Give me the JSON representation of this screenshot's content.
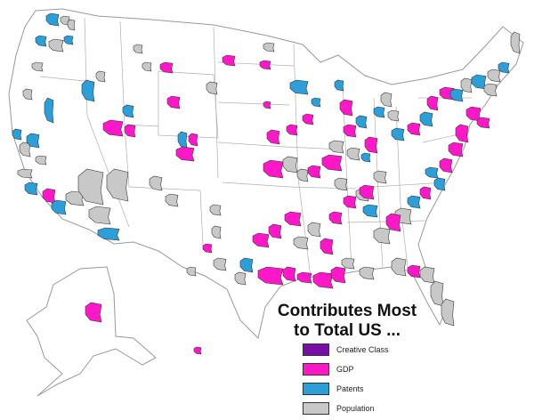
{
  "title": {
    "line1": "Contributes Most",
    "line2": "to Total US ..."
  },
  "legend": [
    {
      "label": "Creative Class",
      "color": "#7a0fa8"
    },
    {
      "label": "GDP",
      "color": "#ff17c8"
    },
    {
      "label": "Patents",
      "color": "#2c9fd9"
    },
    {
      "label": "Population",
      "color": "#c8c8c8"
    }
  ],
  "colors": {
    "land": "#ffffff",
    "state_border": "#b0b0b0",
    "metro_border": "#3a3a3a"
  }
}
